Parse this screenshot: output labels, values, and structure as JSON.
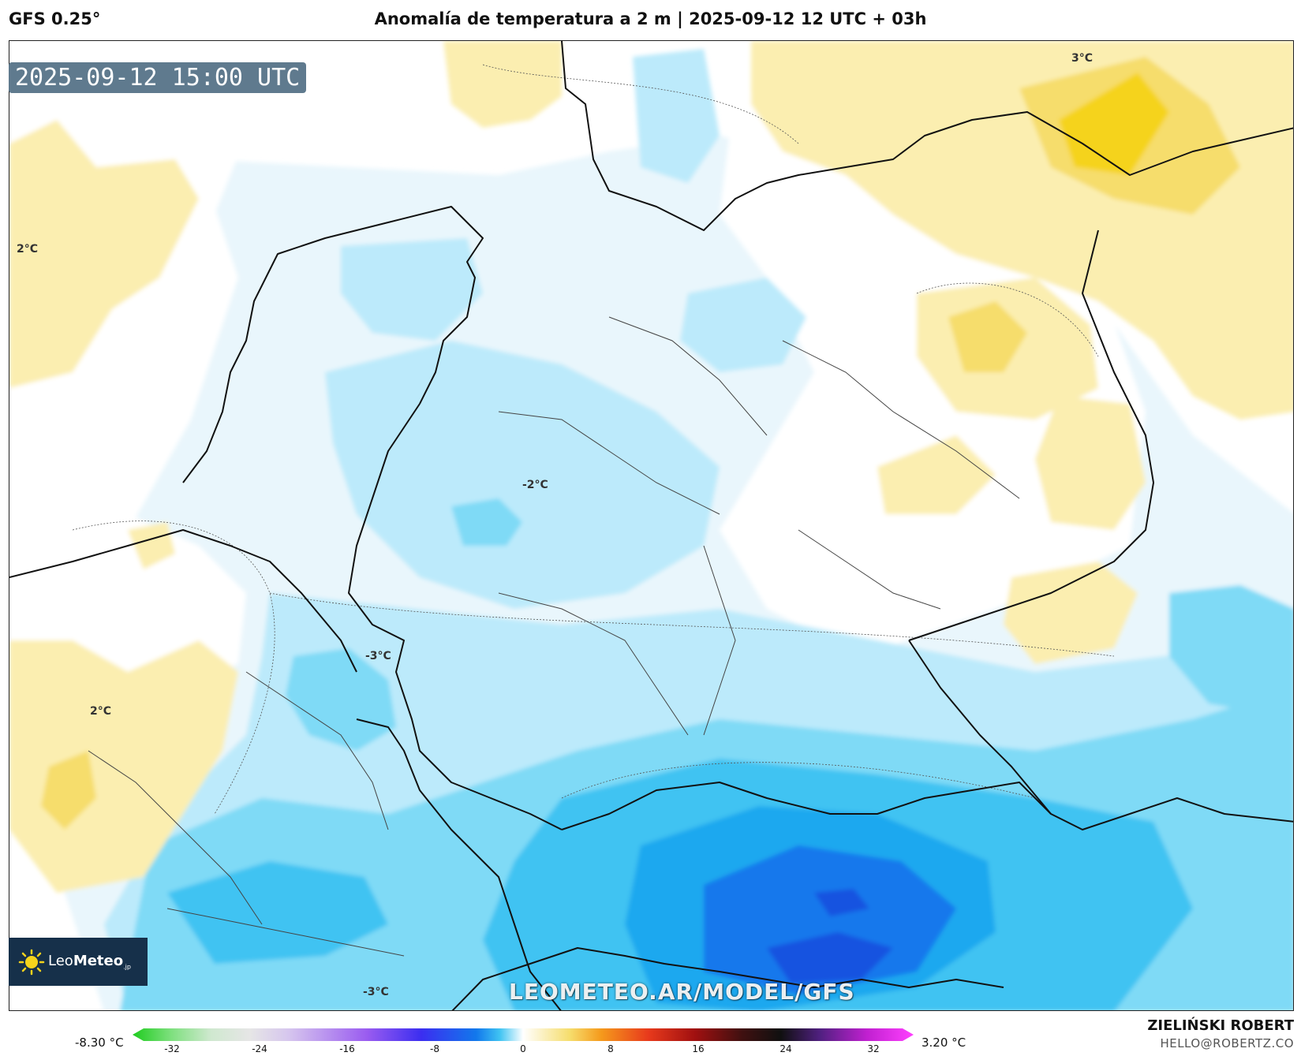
{
  "header": {
    "model": "GFS 0.25°",
    "title": "Anomalía de temperatura a 2 m | 2025-09-12 12 UTC + 03h"
  },
  "map": {
    "valid_time": "2025-09-12 15:00 UTC",
    "contour_labels": [
      "3°C",
      "2°C",
      "-2°C",
      "-3°C",
      "2°C",
      "-3°C"
    ],
    "watermark": "LEOMETEO.AR/MODEL/GFS",
    "logo": {
      "name": "LeoMeteo",
      "prefix": "Leo",
      "bold": "Meteo",
      "suffix": ".jp"
    }
  },
  "colorbar": {
    "min_label": "-8.30 °C",
    "max_label": "3.20 °C",
    "ticks": [
      "-32",
      "-24",
      "-16",
      "-8",
      "0",
      "8",
      "16",
      "24",
      "32"
    ]
  },
  "credits": {
    "author": "ZIELIŃSKI ROBERT",
    "email": "HELLO@ROBERTZ.CO"
  },
  "colors": {
    "warm_light": "#fbeeb0",
    "warm_mid": "#f6dd6c",
    "warm_strong": "#f5d31c",
    "cold_pale": "#e9f6fc",
    "cold_light": "#bceafb",
    "cold_mid": "#7fdaf6",
    "cold_strong": "#3fc3f2",
    "cold_deep": "#1aa8ef",
    "cold_darker": "#1278ec",
    "cold_darkest": "#1653e0",
    "watermark_bg": "#5f7a8e",
    "logo_bg": "#16304a"
  }
}
